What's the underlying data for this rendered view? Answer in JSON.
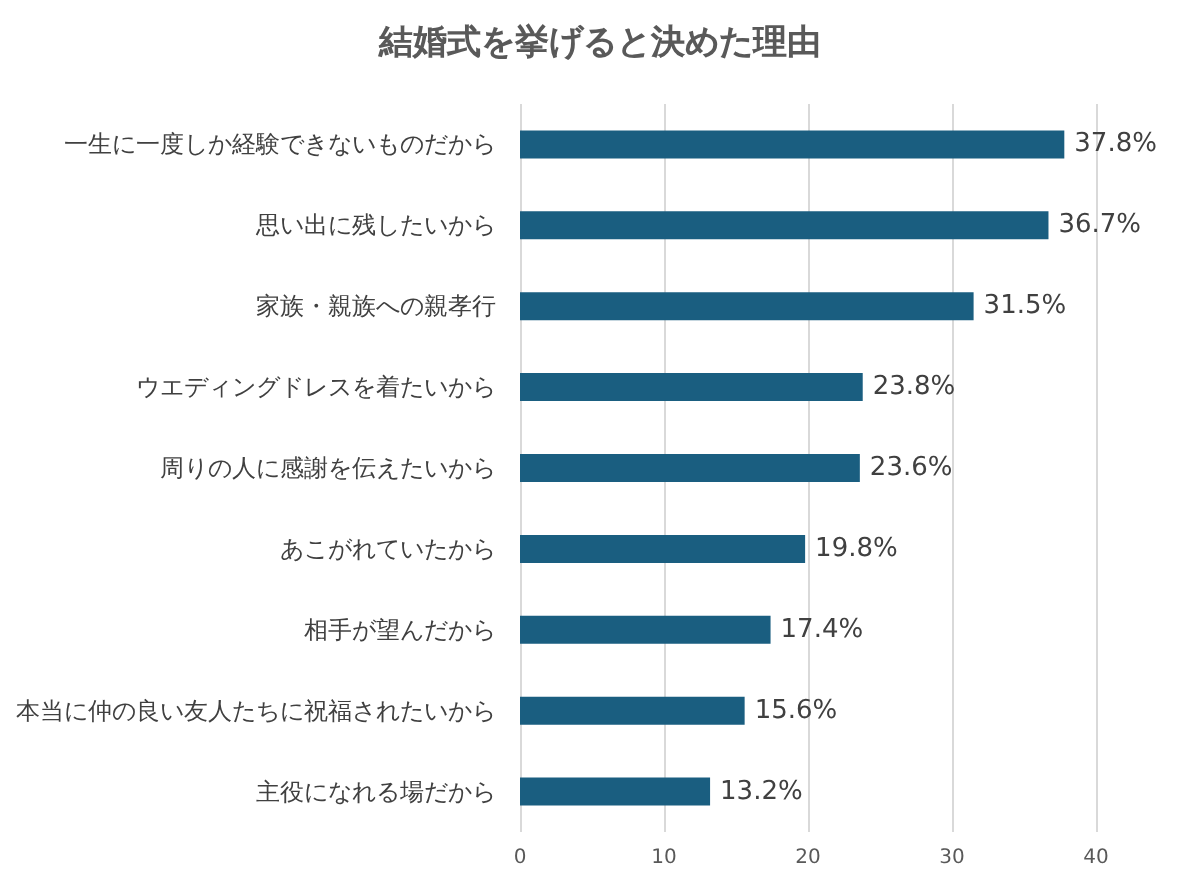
{
  "chart_data": {
    "type": "bar",
    "orientation": "horizontal",
    "title": "結婚式を挙げると決めた理由",
    "categories": [
      "一生に一度しか経験できないものだから",
      "思い出に残したいから",
      "家族・親族への親孝行",
      "ウエディングドレスを着たいから",
      "周りの人に感謝を伝えたいから",
      "あこがれていたから",
      "相手が望んだから",
      "本当に仲の良い友人たちに祝福されたいから",
      "主役になれる場だから"
    ],
    "values": [
      37.8,
      36.7,
      31.5,
      23.8,
      23.6,
      19.8,
      17.4,
      15.6,
      13.2
    ],
    "value_labels": [
      "37.8%",
      "36.7%",
      "31.5%",
      "23.8%",
      "23.6%",
      "19.8%",
      "17.4%",
      "15.6%",
      "13.2%"
    ],
    "color": "#1a5e80",
    "xlim": [
      0,
      40
    ],
    "xticks": [
      0,
      10,
      20,
      30,
      40
    ],
    "grid": "x"
  }
}
